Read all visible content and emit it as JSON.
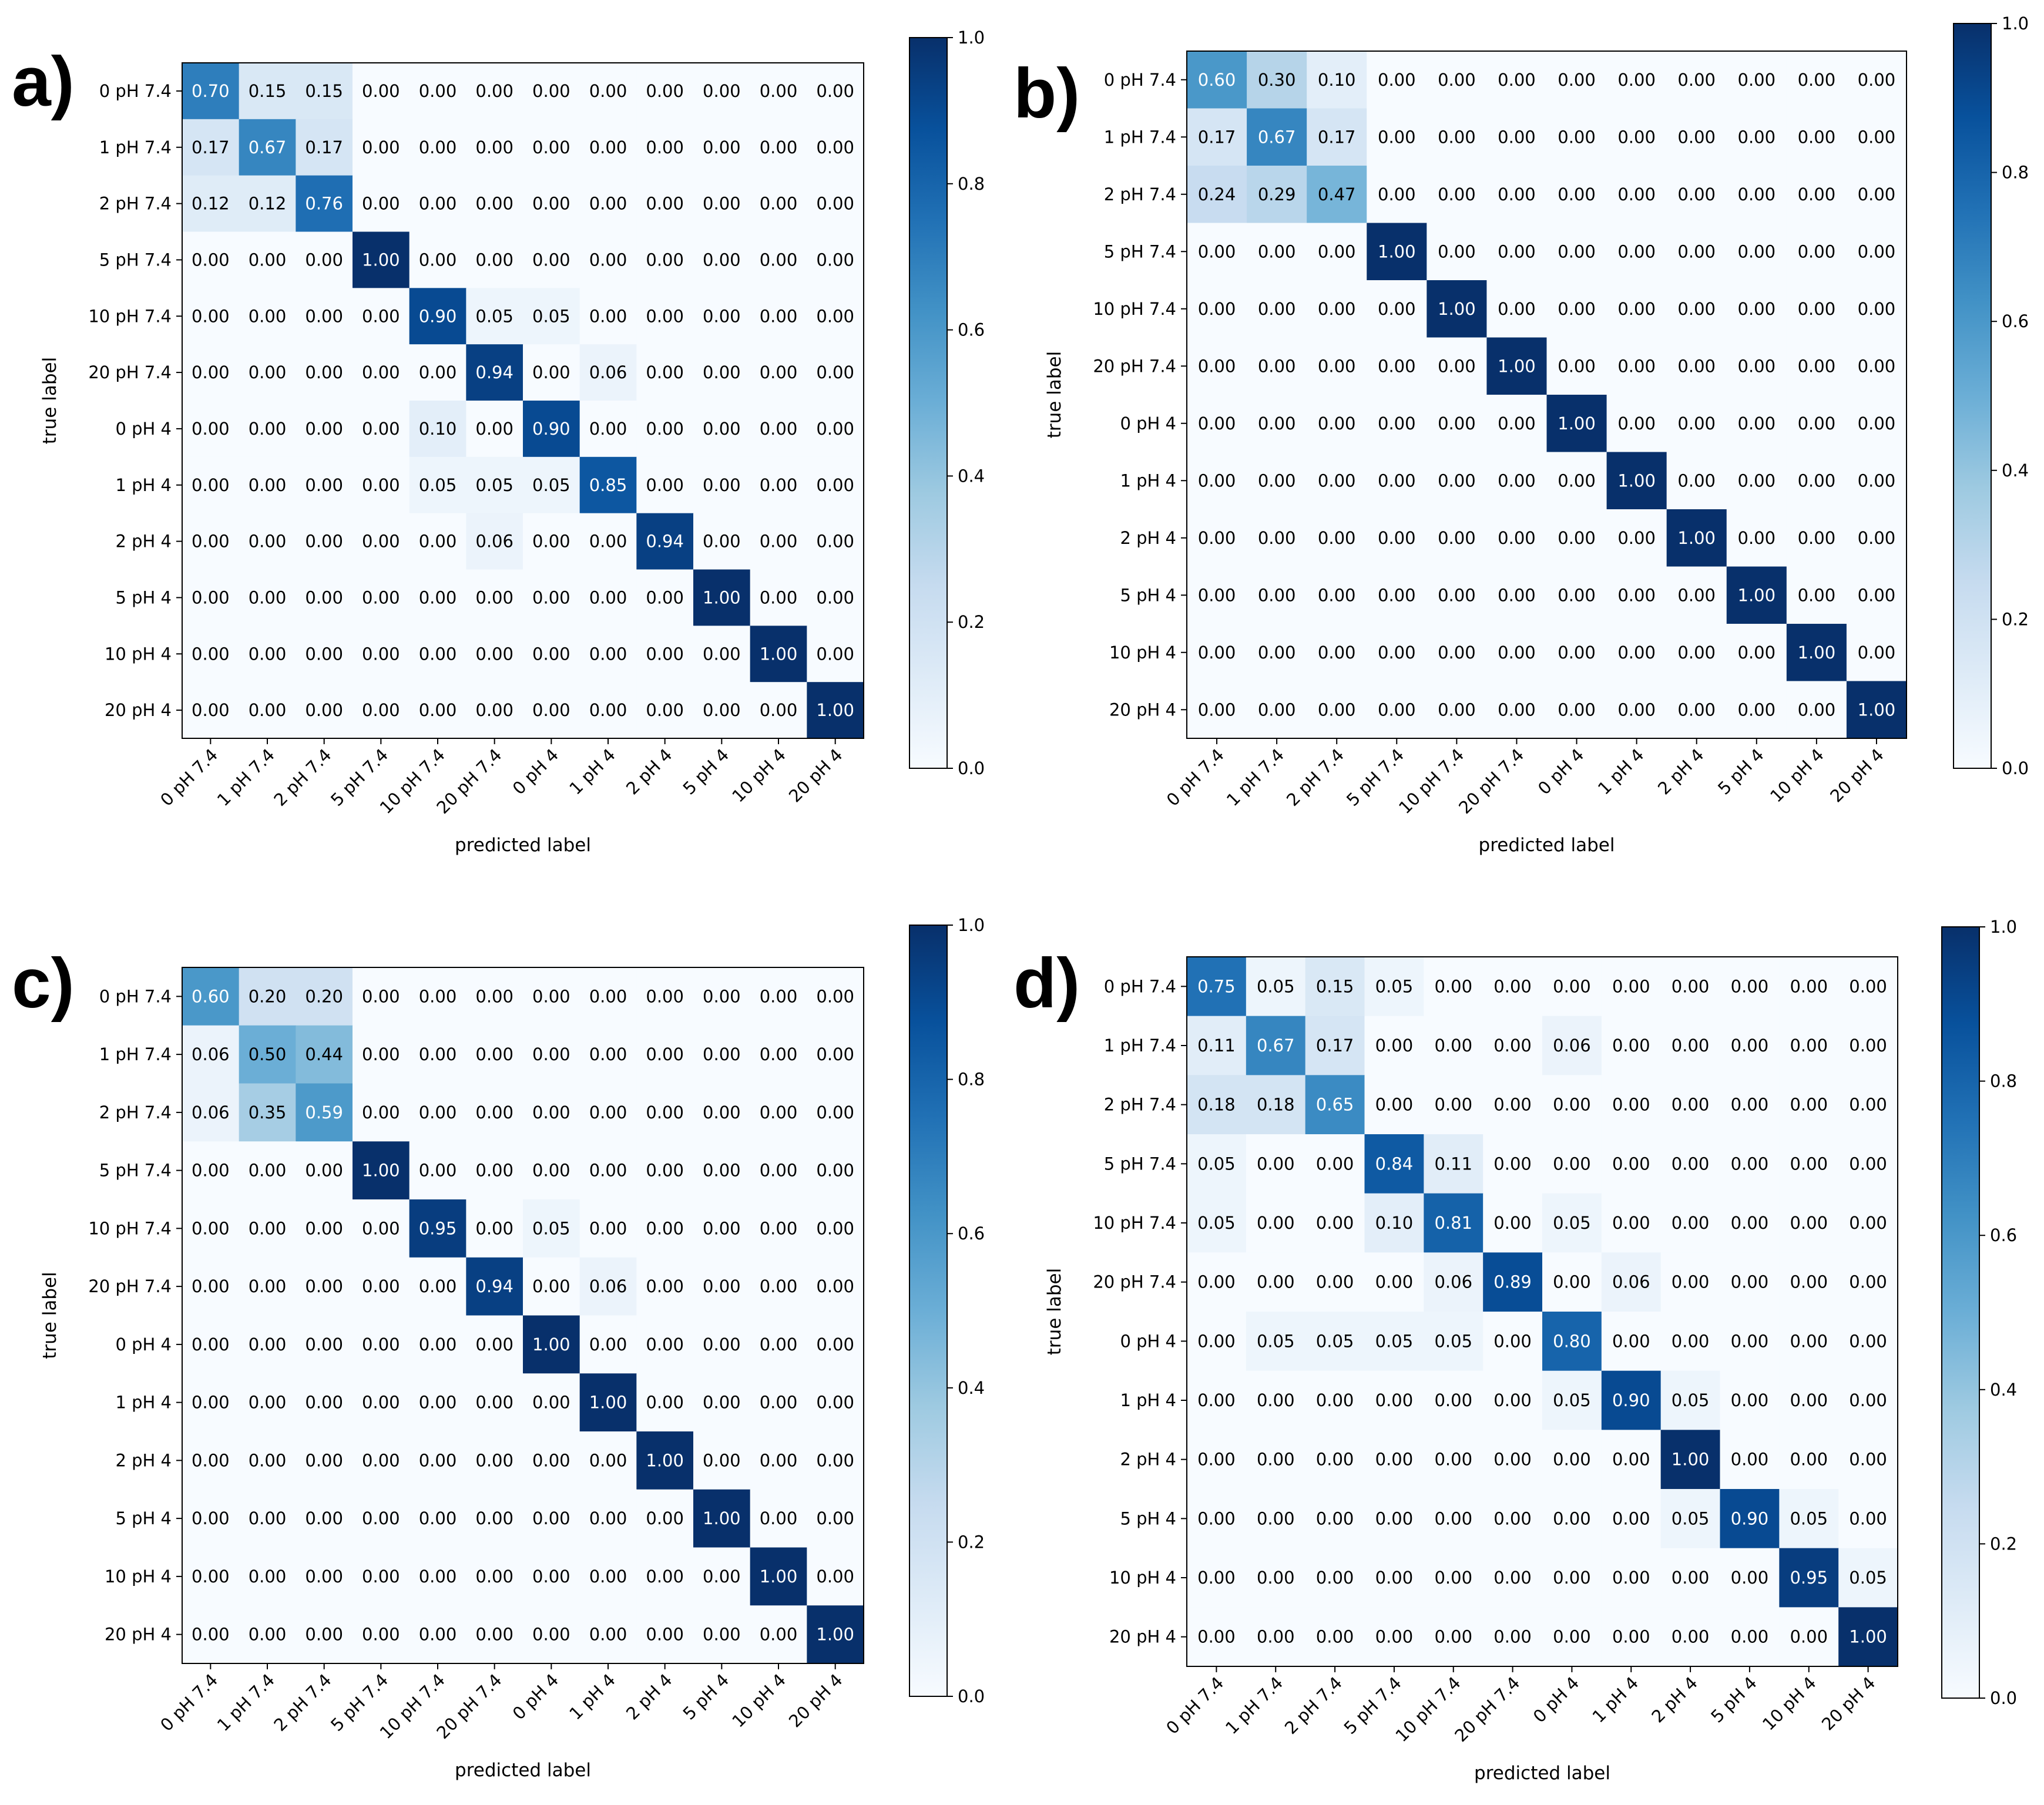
{
  "chart_data": [
    {
      "type": "heatmap",
      "panel": "a)",
      "xlabel": "predicted label",
      "ylabel": "true label",
      "row_labels": [
        "0 pH 7.4",
        "1 pH 7.4",
        "2 pH 7.4",
        "5 pH 7.4",
        "10 pH 7.4",
        "20 pH 7.4",
        "0 pH 4",
        "1 pH 4",
        "2 pH 4",
        "5 pH 4",
        "10 pH 4",
        "20 pH 4"
      ],
      "col_labels": [
        "0 pH 7.4",
        "1 pH 7.4",
        "2 pH 7.4",
        "5 pH 7.4",
        "10 pH 7.4",
        "20 pH 7.4",
        "0 pH 4",
        "1 pH 4",
        "2 pH 4",
        "5 pH 4",
        "10 pH 4",
        "20 pH 4"
      ],
      "colorbar_ticks": [
        "0.0",
        "0.2",
        "0.4",
        "0.6",
        "0.8",
        "1.0"
      ],
      "colorbar_range": [
        0,
        1
      ],
      "values": [
        [
          0.7,
          0.15,
          0.15,
          0.0,
          0.0,
          0.0,
          0.0,
          0.0,
          0.0,
          0.0,
          0.0,
          0.0
        ],
        [
          0.17,
          0.67,
          0.17,
          0.0,
          0.0,
          0.0,
          0.0,
          0.0,
          0.0,
          0.0,
          0.0,
          0.0
        ],
        [
          0.12,
          0.12,
          0.76,
          0.0,
          0.0,
          0.0,
          0.0,
          0.0,
          0.0,
          0.0,
          0.0,
          0.0
        ],
        [
          0.0,
          0.0,
          0.0,
          1.0,
          0.0,
          0.0,
          0.0,
          0.0,
          0.0,
          0.0,
          0.0,
          0.0
        ],
        [
          0.0,
          0.0,
          0.0,
          0.0,
          0.9,
          0.05,
          0.05,
          0.0,
          0.0,
          0.0,
          0.0,
          0.0
        ],
        [
          0.0,
          0.0,
          0.0,
          0.0,
          0.0,
          0.94,
          0.0,
          0.06,
          0.0,
          0.0,
          0.0,
          0.0
        ],
        [
          0.0,
          0.0,
          0.0,
          0.0,
          0.1,
          0.0,
          0.9,
          0.0,
          0.0,
          0.0,
          0.0,
          0.0
        ],
        [
          0.0,
          0.0,
          0.0,
          0.0,
          0.05,
          0.05,
          0.05,
          0.85,
          0.0,
          0.0,
          0.0,
          0.0
        ],
        [
          0.0,
          0.0,
          0.0,
          0.0,
          0.0,
          0.06,
          0.0,
          0.0,
          0.94,
          0.0,
          0.0,
          0.0
        ],
        [
          0.0,
          0.0,
          0.0,
          0.0,
          0.0,
          0.0,
          0.0,
          0.0,
          0.0,
          1.0,
          0.0,
          0.0
        ],
        [
          0.0,
          0.0,
          0.0,
          0.0,
          0.0,
          0.0,
          0.0,
          0.0,
          0.0,
          0.0,
          1.0,
          0.0
        ],
        [
          0.0,
          0.0,
          0.0,
          0.0,
          0.0,
          0.0,
          0.0,
          0.0,
          0.0,
          0.0,
          0.0,
          1.0
        ]
      ]
    },
    {
      "type": "heatmap",
      "panel": "b)",
      "xlabel": "predicted label",
      "ylabel": "true label",
      "row_labels": [
        "0 pH 7.4",
        "1 pH 7.4",
        "2 pH 7.4",
        "5 pH 7.4",
        "10 pH 7.4",
        "20 pH 7.4",
        "0 pH 4",
        "1 pH 4",
        "2 pH 4",
        "5 pH 4",
        "10 pH 4",
        "20 pH 4"
      ],
      "col_labels": [
        "0 pH 7.4",
        "1 pH 7.4",
        "2 pH 7.4",
        "5 pH 7.4",
        "10 pH 7.4",
        "20 pH 7.4",
        "0 pH 4",
        "1 pH 4",
        "2 pH 4",
        "5 pH 4",
        "10 pH 4",
        "20 pH 4"
      ],
      "colorbar_ticks": [
        "0.0",
        "0.2",
        "0.4",
        "0.6",
        "0.8",
        "1.0"
      ],
      "colorbar_range": [
        0,
        1
      ],
      "values": [
        [
          0.6,
          0.3,
          0.1,
          0.0,
          0.0,
          0.0,
          0.0,
          0.0,
          0.0,
          0.0,
          0.0,
          0.0
        ],
        [
          0.17,
          0.67,
          0.17,
          0.0,
          0.0,
          0.0,
          0.0,
          0.0,
          0.0,
          0.0,
          0.0,
          0.0
        ],
        [
          0.24,
          0.29,
          0.47,
          0.0,
          0.0,
          0.0,
          0.0,
          0.0,
          0.0,
          0.0,
          0.0,
          0.0
        ],
        [
          0.0,
          0.0,
          0.0,
          1.0,
          0.0,
          0.0,
          0.0,
          0.0,
          0.0,
          0.0,
          0.0,
          0.0
        ],
        [
          0.0,
          0.0,
          0.0,
          0.0,
          1.0,
          0.0,
          0.0,
          0.0,
          0.0,
          0.0,
          0.0,
          0.0
        ],
        [
          0.0,
          0.0,
          0.0,
          0.0,
          0.0,
          1.0,
          0.0,
          0.0,
          0.0,
          0.0,
          0.0,
          0.0
        ],
        [
          0.0,
          0.0,
          0.0,
          0.0,
          0.0,
          0.0,
          1.0,
          0.0,
          0.0,
          0.0,
          0.0,
          0.0
        ],
        [
          0.0,
          0.0,
          0.0,
          0.0,
          0.0,
          0.0,
          0.0,
          1.0,
          0.0,
          0.0,
          0.0,
          0.0
        ],
        [
          0.0,
          0.0,
          0.0,
          0.0,
          0.0,
          0.0,
          0.0,
          0.0,
          1.0,
          0.0,
          0.0,
          0.0
        ],
        [
          0.0,
          0.0,
          0.0,
          0.0,
          0.0,
          0.0,
          0.0,
          0.0,
          0.0,
          1.0,
          0.0,
          0.0
        ],
        [
          0.0,
          0.0,
          0.0,
          0.0,
          0.0,
          0.0,
          0.0,
          0.0,
          0.0,
          0.0,
          1.0,
          0.0
        ],
        [
          0.0,
          0.0,
          0.0,
          0.0,
          0.0,
          0.0,
          0.0,
          0.0,
          0.0,
          0.0,
          0.0,
          1.0
        ]
      ]
    },
    {
      "type": "heatmap",
      "panel": "c)",
      "xlabel": "predicted label",
      "ylabel": "true label",
      "row_labels": [
        "0 pH 7.4",
        "1 pH 7.4",
        "2 pH 7.4",
        "5 pH 7.4",
        "10 pH 7.4",
        "20 pH 7.4",
        "0 pH 4",
        "1 pH 4",
        "2 pH 4",
        "5 pH 4",
        "10 pH 4",
        "20 pH 4"
      ],
      "col_labels": [
        "0 pH 7.4",
        "1 pH 7.4",
        "2 pH 7.4",
        "5 pH 7.4",
        "10 pH 7.4",
        "20 pH 7.4",
        "0 pH 4",
        "1 pH 4",
        "2 pH 4",
        "5 pH 4",
        "10 pH 4",
        "20 pH 4"
      ],
      "colorbar_ticks": [
        "0.0",
        "0.2",
        "0.4",
        "0.6",
        "0.8",
        "1.0"
      ],
      "colorbar_range": [
        0,
        1
      ],
      "values": [
        [
          0.6,
          0.2,
          0.2,
          0.0,
          0.0,
          0.0,
          0.0,
          0.0,
          0.0,
          0.0,
          0.0,
          0.0
        ],
        [
          0.06,
          0.5,
          0.44,
          0.0,
          0.0,
          0.0,
          0.0,
          0.0,
          0.0,
          0.0,
          0.0,
          0.0
        ],
        [
          0.06,
          0.35,
          0.59,
          0.0,
          0.0,
          0.0,
          0.0,
          0.0,
          0.0,
          0.0,
          0.0,
          0.0
        ],
        [
          0.0,
          0.0,
          0.0,
          1.0,
          0.0,
          0.0,
          0.0,
          0.0,
          0.0,
          0.0,
          0.0,
          0.0
        ],
        [
          0.0,
          0.0,
          0.0,
          0.0,
          0.95,
          0.0,
          0.05,
          0.0,
          0.0,
          0.0,
          0.0,
          0.0
        ],
        [
          0.0,
          0.0,
          0.0,
          0.0,
          0.0,
          0.94,
          0.0,
          0.06,
          0.0,
          0.0,
          0.0,
          0.0
        ],
        [
          0.0,
          0.0,
          0.0,
          0.0,
          0.0,
          0.0,
          1.0,
          0.0,
          0.0,
          0.0,
          0.0,
          0.0
        ],
        [
          0.0,
          0.0,
          0.0,
          0.0,
          0.0,
          0.0,
          0.0,
          1.0,
          0.0,
          0.0,
          0.0,
          0.0
        ],
        [
          0.0,
          0.0,
          0.0,
          0.0,
          0.0,
          0.0,
          0.0,
          0.0,
          1.0,
          0.0,
          0.0,
          0.0
        ],
        [
          0.0,
          0.0,
          0.0,
          0.0,
          0.0,
          0.0,
          0.0,
          0.0,
          0.0,
          1.0,
          0.0,
          0.0
        ],
        [
          0.0,
          0.0,
          0.0,
          0.0,
          0.0,
          0.0,
          0.0,
          0.0,
          0.0,
          0.0,
          1.0,
          0.0
        ],
        [
          0.0,
          0.0,
          0.0,
          0.0,
          0.0,
          0.0,
          0.0,
          0.0,
          0.0,
          0.0,
          0.0,
          1.0
        ]
      ]
    },
    {
      "type": "heatmap",
      "panel": "d)",
      "xlabel": "predicted label",
      "ylabel": "true label",
      "row_labels": [
        "0 pH 7.4",
        "1 pH 7.4",
        "2 pH 7.4",
        "5 pH 7.4",
        "10 pH 7.4",
        "20 pH 7.4",
        "0 pH 4",
        "1 pH 4",
        "2 pH 4",
        "5 pH 4",
        "10 pH 4",
        "20 pH 4"
      ],
      "col_labels": [
        "0 pH 7.4",
        "1 pH 7.4",
        "2 pH 7.4",
        "5 pH 7.4",
        "10 pH 7.4",
        "20 pH 7.4",
        "0 pH 4",
        "1 pH 4",
        "2 pH 4",
        "5 pH 4",
        "10 pH 4",
        "20 pH 4"
      ],
      "colorbar_ticks": [
        "0.0",
        "0.2",
        "0.4",
        "0.6",
        "0.8",
        "1.0"
      ],
      "colorbar_range": [
        0,
        1
      ],
      "values": [
        [
          0.75,
          0.05,
          0.15,
          0.05,
          0.0,
          0.0,
          0.0,
          0.0,
          0.0,
          0.0,
          0.0,
          0.0
        ],
        [
          0.11,
          0.67,
          0.17,
          0.0,
          0.0,
          0.0,
          0.06,
          0.0,
          0.0,
          0.0,
          0.0,
          0.0
        ],
        [
          0.18,
          0.18,
          0.65,
          0.0,
          0.0,
          0.0,
          0.0,
          0.0,
          0.0,
          0.0,
          0.0,
          0.0
        ],
        [
          0.05,
          0.0,
          0.0,
          0.84,
          0.11,
          0.0,
          0.0,
          0.0,
          0.0,
          0.0,
          0.0,
          0.0
        ],
        [
          0.05,
          0.0,
          0.0,
          0.1,
          0.81,
          0.0,
          0.05,
          0.0,
          0.0,
          0.0,
          0.0,
          0.0
        ],
        [
          0.0,
          0.0,
          0.0,
          0.0,
          0.06,
          0.89,
          0.0,
          0.06,
          0.0,
          0.0,
          0.0,
          0.0
        ],
        [
          0.0,
          0.05,
          0.05,
          0.05,
          0.05,
          0.0,
          0.8,
          0.0,
          0.0,
          0.0,
          0.0,
          0.0
        ],
        [
          0.0,
          0.0,
          0.0,
          0.0,
          0.0,
          0.0,
          0.05,
          0.9,
          0.05,
          0.0,
          0.0,
          0.0
        ],
        [
          0.0,
          0.0,
          0.0,
          0.0,
          0.0,
          0.0,
          0.0,
          0.0,
          1.0,
          0.0,
          0.0,
          0.0
        ],
        [
          0.0,
          0.0,
          0.0,
          0.0,
          0.0,
          0.0,
          0.0,
          0.0,
          0.05,
          0.9,
          0.05,
          0.0
        ],
        [
          0.0,
          0.0,
          0.0,
          0.0,
          0.0,
          0.0,
          0.0,
          0.0,
          0.0,
          0.0,
          0.95,
          0.05
        ],
        [
          0.0,
          0.0,
          0.0,
          0.0,
          0.0,
          0.0,
          0.0,
          0.0,
          0.0,
          0.0,
          0.0,
          1.0
        ]
      ]
    }
  ]
}
